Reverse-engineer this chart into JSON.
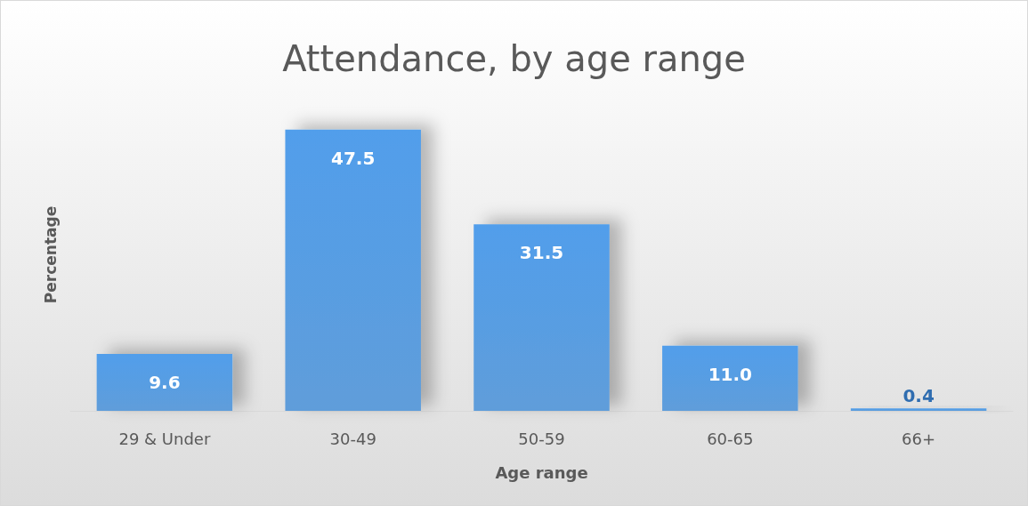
{
  "chart_data": {
    "type": "bar",
    "title": "Attendance, by age range",
    "xlabel": "Age range",
    "ylabel": "Percentage",
    "categories": [
      "29 & Under",
      "30-49",
      "50-59",
      "60-65",
      "66+"
    ],
    "values": [
      9.6,
      47.5,
      31.5,
      11.0,
      0.4
    ],
    "value_labels": [
      "9.6",
      "47.5",
      "31.5",
      "11.0",
      "0.4"
    ],
    "color": "#4a90d6",
    "grid": false
  }
}
